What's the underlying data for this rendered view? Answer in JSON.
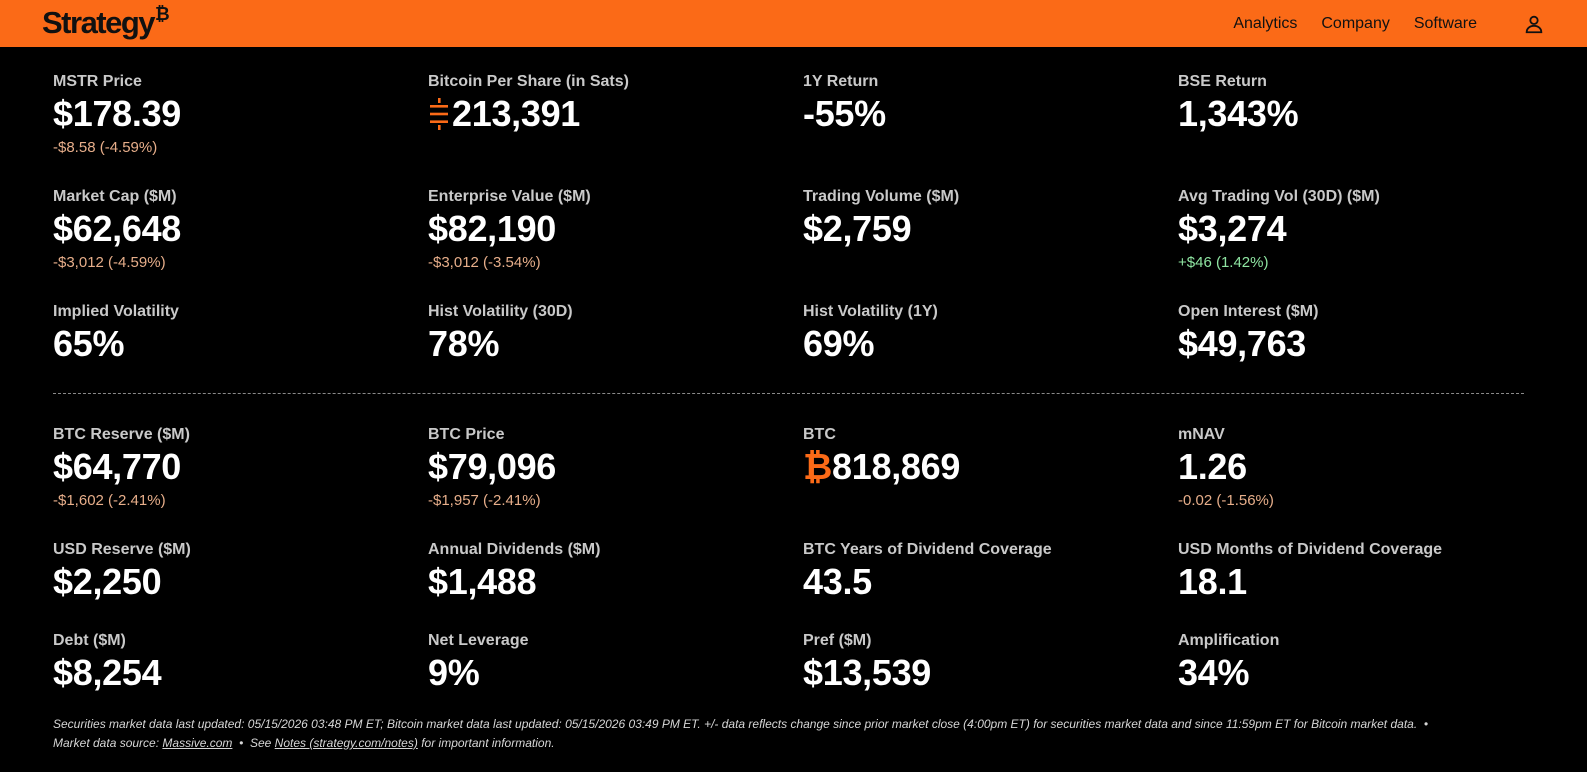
{
  "header": {
    "logo": "Strategy",
    "logo_mark": "₿",
    "nav": [
      "Analytics",
      "Company",
      "Software"
    ],
    "user_icon": "user-icon",
    "accent_color": "#fb6a17"
  },
  "metrics_top": [
    {
      "label": "MSTR Price",
      "value": "$178.39",
      "change": "-$8.58 (-4.59%)",
      "trend": "neg"
    },
    {
      "label": "Bitcoin Per Share (in Sats)",
      "symbol": "sats-icon",
      "value": "213,391",
      "change": "",
      "trend": ""
    },
    {
      "label": "1Y Return",
      "value": "-55%",
      "change": "",
      "trend": ""
    },
    {
      "label": "BSE Return",
      "value": "1,343%",
      "change": "",
      "trend": ""
    },
    {
      "label": "Market Cap ($M)",
      "value": "$62,648",
      "change": "-$3,012 (-4.59%)",
      "trend": "neg"
    },
    {
      "label": "Enterprise Value ($M)",
      "value": "$82,190",
      "change": "-$3,012 (-3.54%)",
      "trend": "neg"
    },
    {
      "label": "Trading Volume ($M)",
      "value": "$2,759",
      "change": "",
      "trend": ""
    },
    {
      "label": "Avg Trading Vol (30D) ($M)",
      "value": "$3,274",
      "change": "+$46 (1.42%)",
      "trend": "pos"
    },
    {
      "label": "Implied Volatility",
      "value": "65%",
      "change": "",
      "trend": ""
    },
    {
      "label": "Hist Volatility (30D)",
      "value": "78%",
      "change": "",
      "trend": ""
    },
    {
      "label": "Hist Volatility (1Y)",
      "value": "69%",
      "change": "",
      "trend": ""
    },
    {
      "label": "Open Interest ($M)",
      "value": "$49,763",
      "change": "",
      "trend": ""
    }
  ],
  "metrics_bottom": [
    {
      "label": "BTC Reserve ($M)",
      "value": "$64,770",
      "change": "-$1,602 (-2.41%)",
      "trend": "neg"
    },
    {
      "label": "BTC Price",
      "value": "$79,096",
      "change": "-$1,957 (-2.41%)",
      "trend": "neg"
    },
    {
      "label": "BTC",
      "symbol_text": "₿",
      "value": "818,869",
      "change": "",
      "trend": ""
    },
    {
      "label": "mNAV",
      "value": "1.26",
      "change": "-0.02 (-1.56%)",
      "trend": "neg"
    },
    {
      "label": "USD Reserve ($M)",
      "value": "$2,250",
      "change": "",
      "trend": ""
    },
    {
      "label": "Annual Dividends ($M)",
      "value": "$1,488",
      "change": "",
      "trend": ""
    },
    {
      "label": "BTC Years of Dividend Coverage",
      "value": "43.5",
      "change": "",
      "trend": ""
    },
    {
      "label": "USD Months of Dividend Coverage",
      "value": "18.1",
      "change": "",
      "trend": ""
    },
    {
      "label": "Debt ($M)",
      "value": "$8,254",
      "change": "",
      "trend": ""
    },
    {
      "label": "Net Leverage",
      "value": "9%",
      "change": "",
      "trend": ""
    },
    {
      "label": "Pref ($M)",
      "value": "$13,539",
      "change": "",
      "trend": ""
    },
    {
      "label": "Amplification",
      "value": "34%",
      "change": "",
      "trend": ""
    }
  ],
  "footer": {
    "line1": "Securities market data last updated: 05/15/2026 03:48 PM ET; Bitcoin market data last updated: 05/15/2026 03:49 PM ET. +/- data reflects change since prior market close (4:00pm ET) for securities market data and since 11:59pm ET for Bitcoin market data.",
    "bullet": "•",
    "source_prefix": "Market data source:",
    "source_link": "Massive.com",
    "see_prefix": "See",
    "notes_link": "Notes (strategy.com/notes)",
    "notes_suffix": "for important information."
  }
}
